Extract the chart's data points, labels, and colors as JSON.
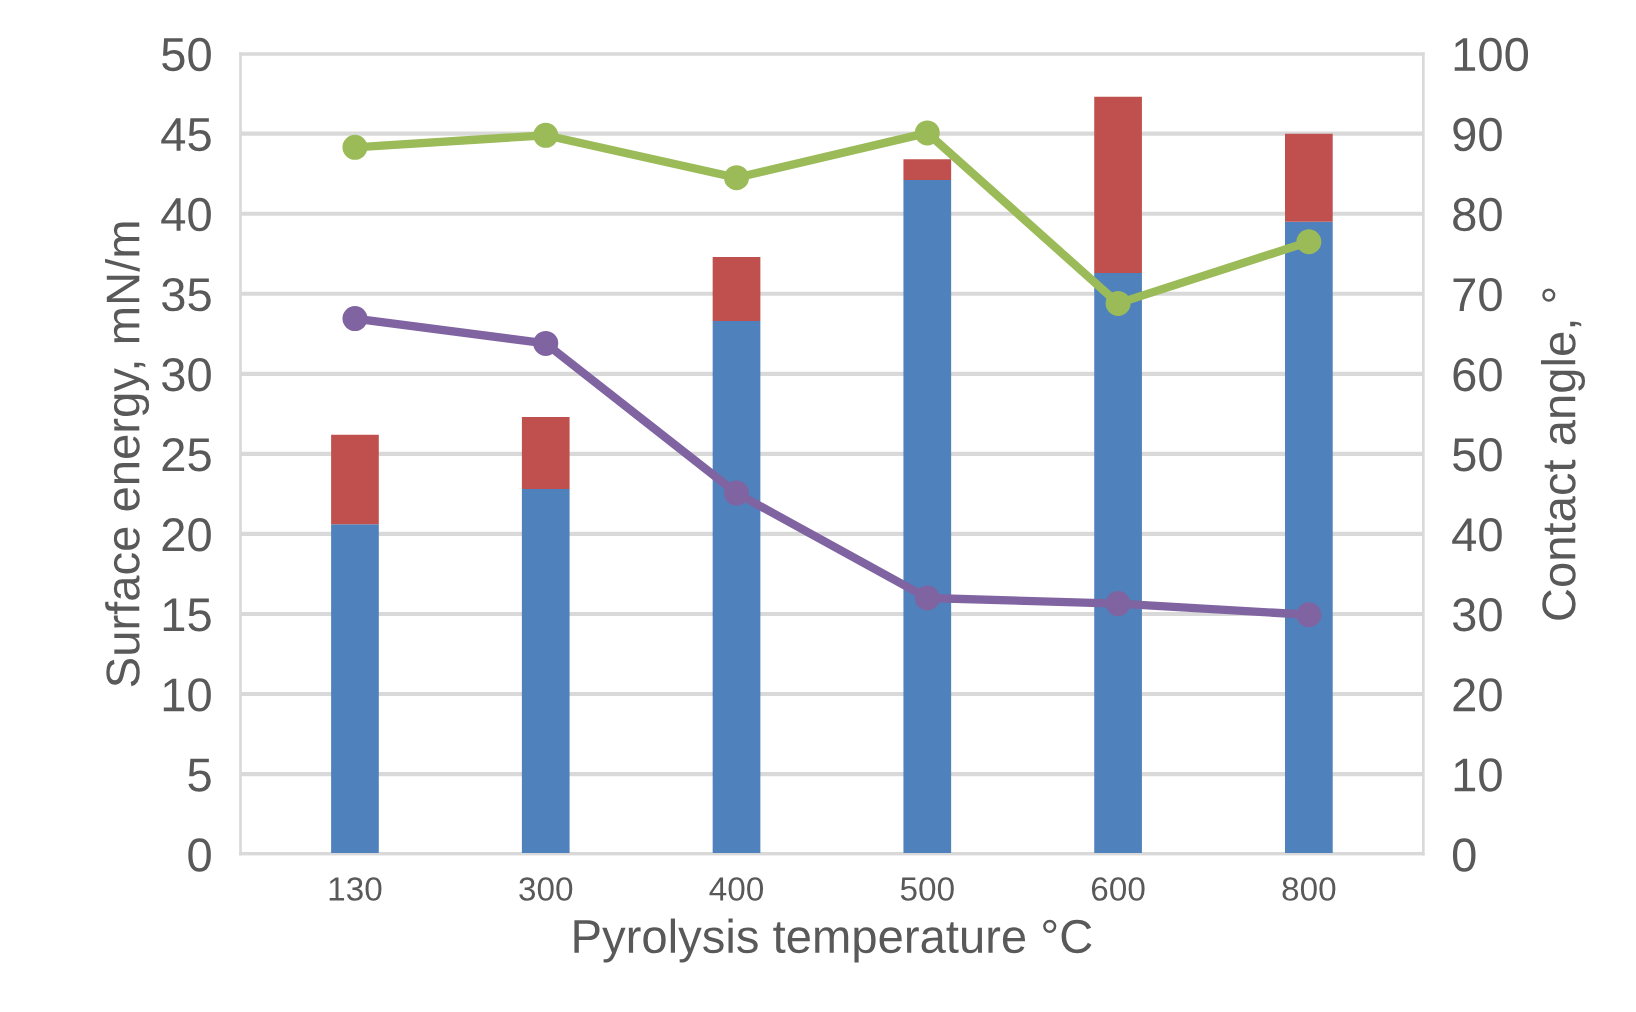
{
  "chart_data": {
    "type": "bar",
    "stacked": true,
    "xlabel": "Pyrolysis temperature °C",
    "ylabel": "Surface energy, mN/m",
    "y2label": "Contact angle, °",
    "categories": [
      "130",
      "300",
      "400",
      "500",
      "600",
      "800"
    ],
    "series": [
      {
        "color": "#4f81bd",
        "values": [
          20.6,
          22.8,
          33.3,
          42.1,
          36.3,
          39.5
        ]
      },
      {
        "color": "#c0504d",
        "values": [
          5.6,
          4.5,
          4.0,
          1.3,
          11.0,
          5.5
        ]
      },
      {
        "type": "line",
        "axis": "y2",
        "color": "#9bbb59",
        "values": [
          88.3,
          89.8,
          84.5,
          90.1,
          68.8,
          76.5
        ]
      },
      {
        "type": "line",
        "axis": "y2",
        "color": "#8064a2",
        "values": [
          66.9,
          63.8,
          45.1,
          32.0,
          31.3,
          29.9
        ]
      }
    ],
    "ylim": [
      0,
      50
    ],
    "yticks": [
      0,
      5,
      10,
      15,
      20,
      25,
      30,
      35,
      40,
      45,
      50
    ],
    "y2lim": [
      0,
      100
    ],
    "y2ticks": [
      0,
      10,
      20,
      30,
      40,
      50,
      60,
      70,
      80,
      90,
      100
    ],
    "grid": "y",
    "marker": "circle",
    "line_style": "solid"
  }
}
